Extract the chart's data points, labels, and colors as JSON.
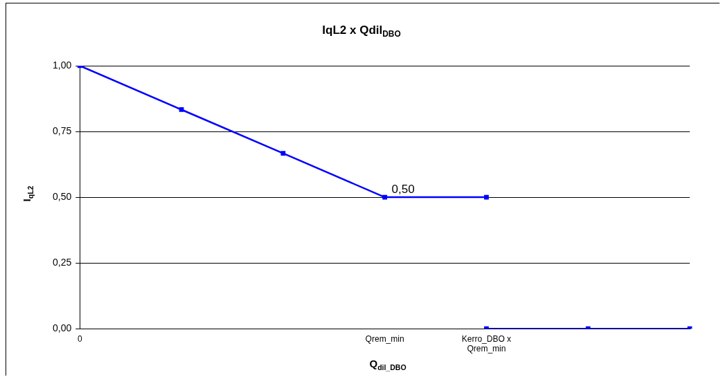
{
  "chart_data": {
    "type": "line",
    "title": "IqL2 x Qdil$_{DBO}$",
    "xlabel": "Q$_{dil_DBO}$",
    "ylabel": "I$_{qL2}$",
    "categories": [
      "0",
      null,
      null,
      "Qrem_min",
      "Kerro_DBO x Qrem_min",
      null,
      null
    ],
    "series": [
      {
        "color": "#0000ff",
        "values": [
          1,
          0.833,
          0.667,
          0.5,
          0.5,
          null,
          null
        ]
      },
      {
        "color": "#0000ff",
        "values": [
          null,
          null,
          null,
          null,
          0,
          0,
          0
        ]
      }
    ],
    "ylim": [
      0,
      1
    ],
    "yticks": [
      {
        "value": 0,
        "label": "0,00"
      },
      {
        "value": 0.25,
        "label": "0,25"
      },
      {
        "value": 0.5,
        "label": "0,50"
      },
      {
        "value": 0.75,
        "label": "0,75"
      },
      {
        "value": 1,
        "label": "1,00"
      }
    ],
    "annotations": [
      {
        "text": "0,50",
        "x": "Qrem_min",
        "y": 0.5
      }
    ],
    "grid": "y",
    "legend": false,
    "marker": "square",
    "line_style": "solid"
  }
}
